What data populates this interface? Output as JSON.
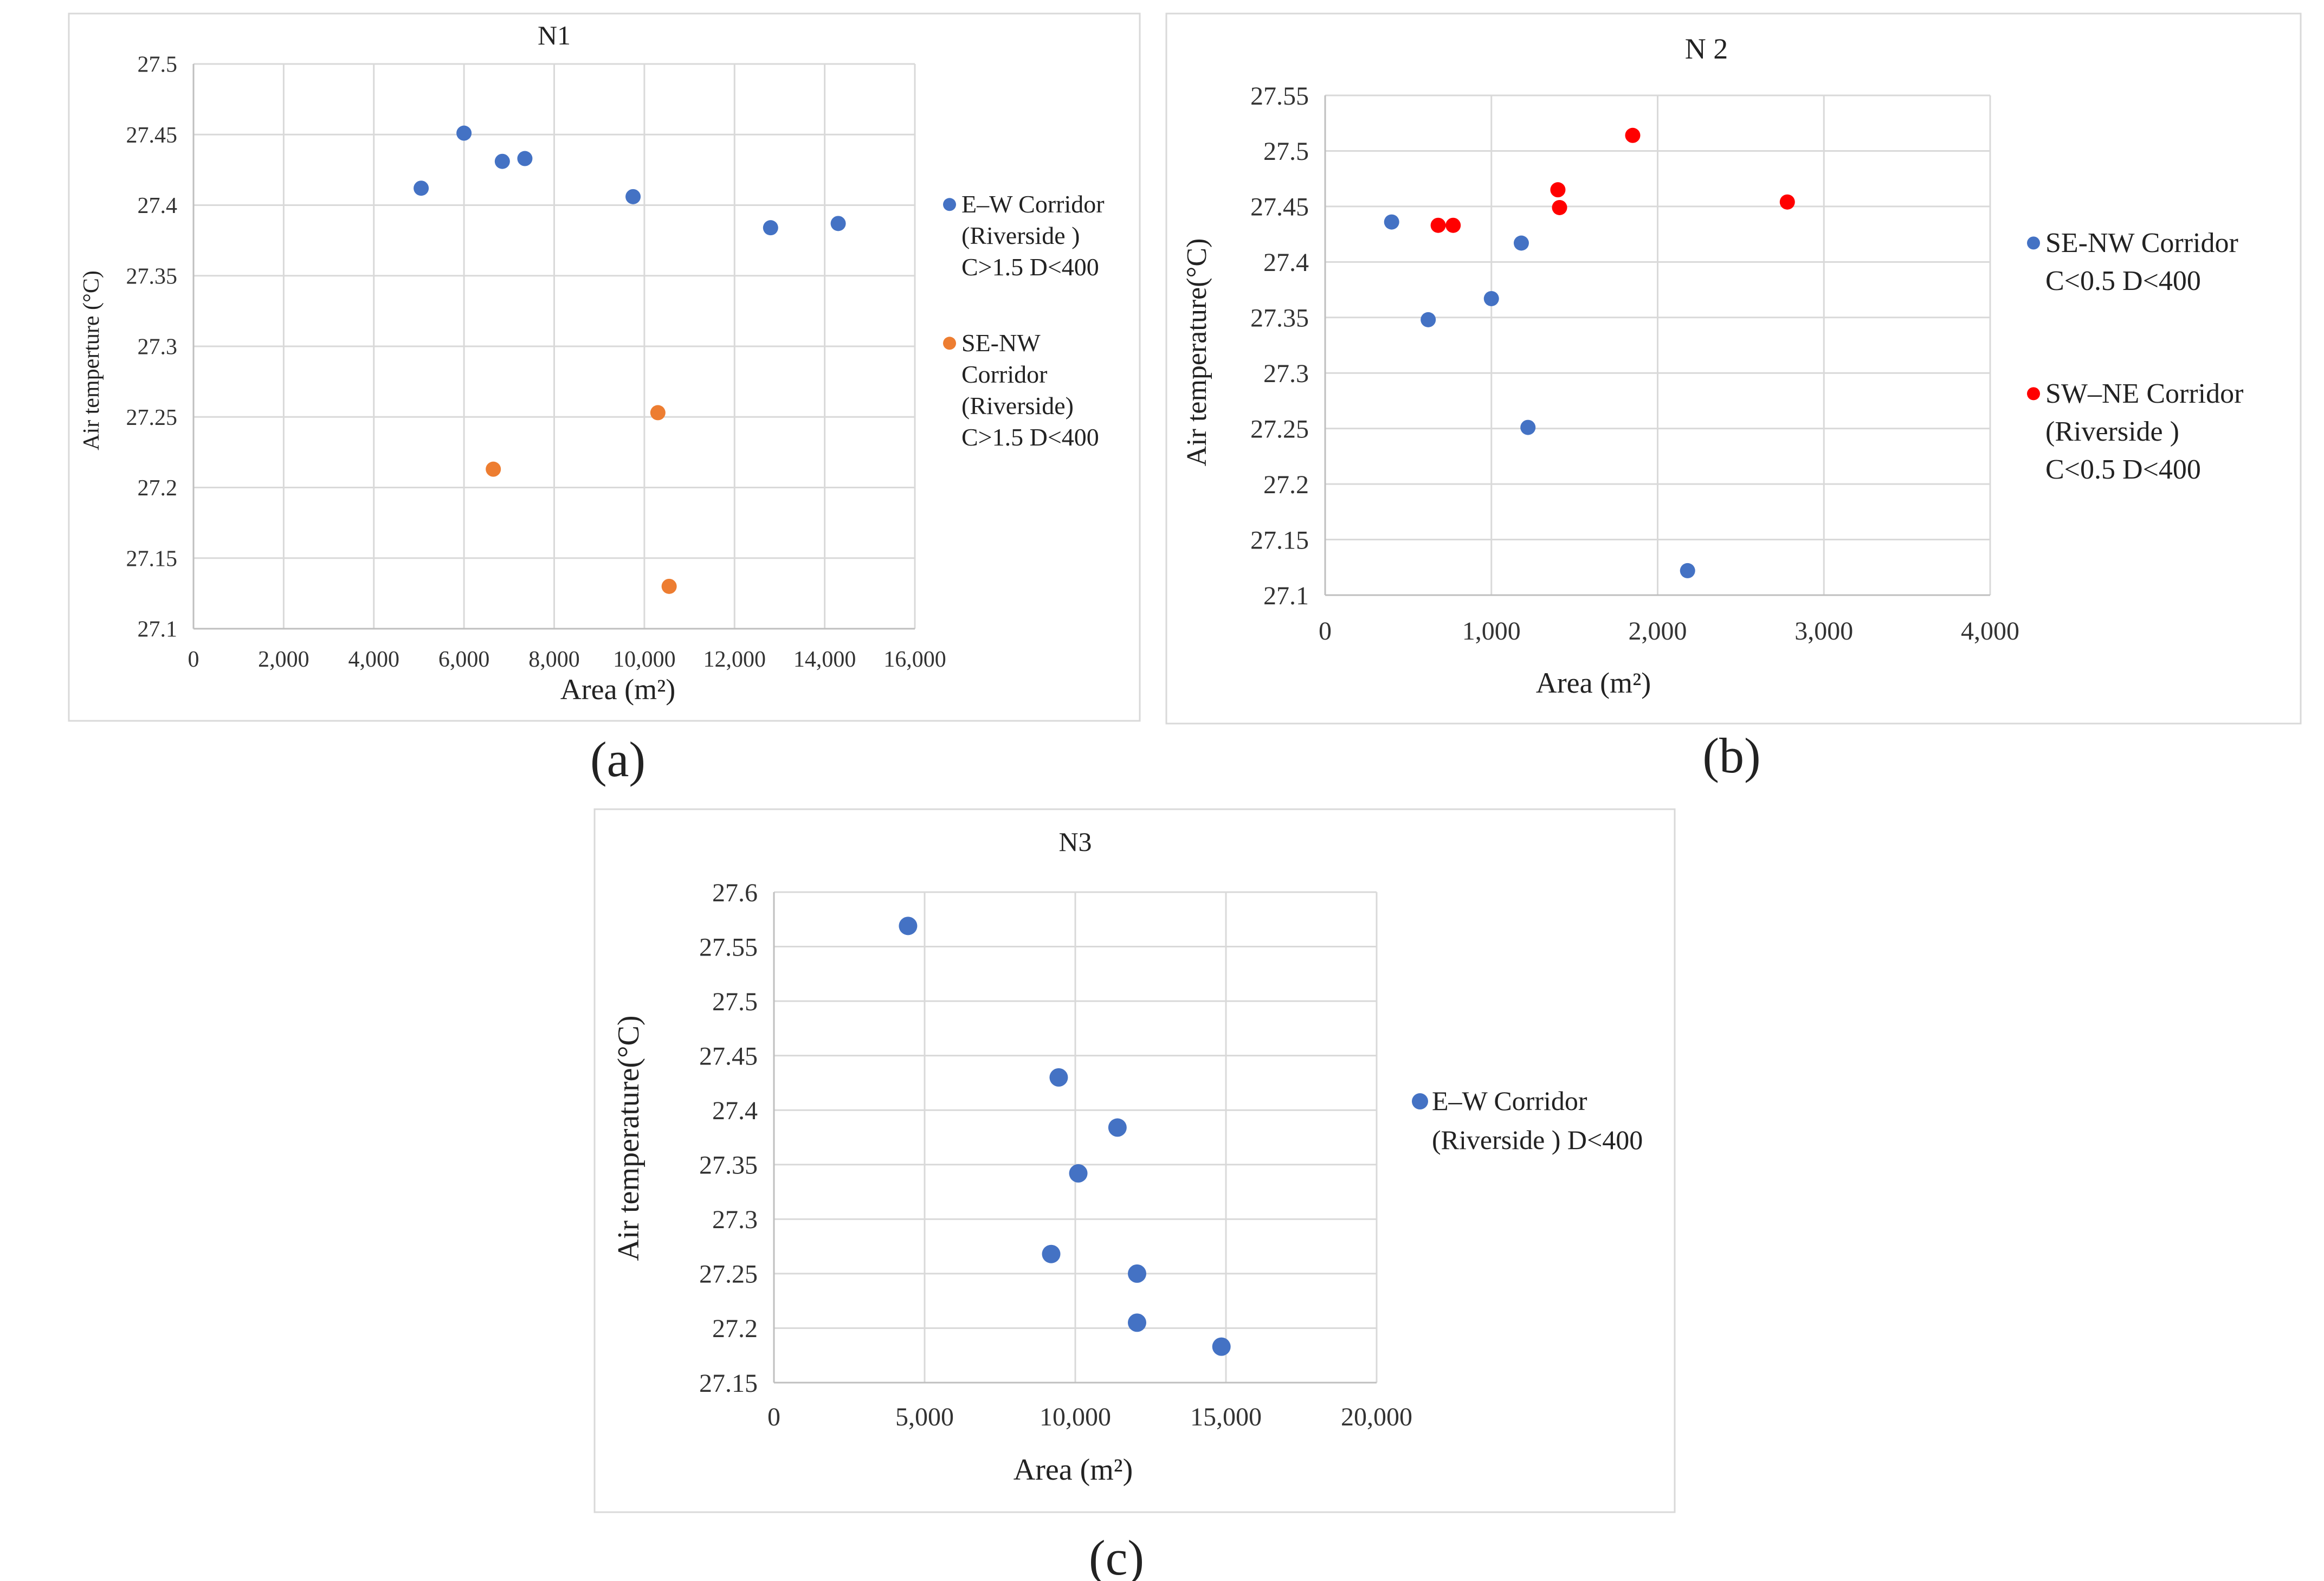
{
  "figure": {
    "panel_letters": [
      "(a)",
      "(b)",
      "(c)"
    ]
  },
  "chart_data": [
    {
      "type": "scatter",
      "id": "N1",
      "title": "N1",
      "xlabel": "Area (m²)",
      "ylabel": "Air temperture (°C)",
      "xlim": [
        0,
        16000
      ],
      "ylim": [
        27.1,
        27.5
      ],
      "xticks": [
        0,
        2000,
        4000,
        6000,
        8000,
        10000,
        12000,
        14000,
        16000
      ],
      "xtick_labels": [
        "0",
        "2,000",
        "4,000",
        "6,000",
        "8,000",
        "10,000",
        "12,000",
        "14,000",
        "16,000"
      ],
      "yticks": [
        27.1,
        27.15,
        27.2,
        27.25,
        27.3,
        27.35,
        27.4,
        27.45,
        27.5
      ],
      "ytick_labels": [
        "27.1",
        "27.15",
        "27.2",
        "27.25",
        "27.3",
        "27.35",
        "27.4",
        "27.45",
        "27.5"
      ],
      "grid": true,
      "legend_position": "right",
      "series": [
        {
          "name": "E–W Corridor (Riverside ) C>1.5 D<400",
          "legend_lines": [
            "E–W Corridor",
            "(Riverside )",
            "C>1.5 D<400"
          ],
          "color": "#4472C4",
          "points": [
            [
              5050,
              27.412
            ],
            [
              6000,
              27.451
            ],
            [
              6850,
              27.431
            ],
            [
              7350,
              27.433
            ],
            [
              9750,
              27.406
            ],
            [
              12800,
              27.384
            ],
            [
              14300,
              27.387
            ]
          ]
        },
        {
          "name": "SE-NW Corridor (Riverside) C>1.5 D<400",
          "legend_lines": [
            "SE-NW",
            "Corridor",
            "(Riverside)",
            "C>1.5 D<400"
          ],
          "color": "#ED7D31",
          "points": [
            [
              6650,
              27.213
            ],
            [
              10300,
              27.253
            ],
            [
              10550,
              27.13
            ]
          ]
        }
      ]
    },
    {
      "type": "scatter",
      "id": "N2",
      "title": "N 2",
      "xlabel": "Area (m²)",
      "ylabel": "Air temperature(°C)",
      "xlim": [
        0,
        4000
      ],
      "ylim": [
        27.1,
        27.55
      ],
      "xticks": [
        0,
        1000,
        2000,
        3000,
        4000
      ],
      "xtick_labels": [
        "0",
        "1,000",
        "2,000",
        "3,000",
        "4,000"
      ],
      "yticks": [
        27.1,
        27.15,
        27.2,
        27.25,
        27.3,
        27.35,
        27.4,
        27.45,
        27.5,
        27.55
      ],
      "ytick_labels": [
        "27.1",
        "27.15",
        "27.2",
        "27.25",
        "27.3",
        "27.35",
        "27.4",
        "27.45",
        "27.5",
        "27.55"
      ],
      "grid": true,
      "legend_position": "right",
      "series": [
        {
          "name": "SE-NW Corridor C<0.5 D<400",
          "legend_lines": [
            "SE-NW  Corridor",
            "C<0.5  D<400"
          ],
          "color": "#4472C4",
          "points": [
            [
              400,
              27.436
            ],
            [
              620,
              27.348
            ],
            [
              1000,
              27.367
            ],
            [
              1180,
              27.417
            ],
            [
              1220,
              27.251
            ],
            [
              2180,
              27.122
            ]
          ]
        },
        {
          "name": "SW–NE Corridor (Riverside ) C<0.5 D<400",
          "legend_lines": [
            "SW–NE  Corridor",
            "(Riverside )",
            "C<0.5 D<400"
          ],
          "color": "#FF0000",
          "points": [
            [
              680,
              27.433
            ],
            [
              770,
              27.433
            ],
            [
              1400,
              27.465
            ],
            [
              1410,
              27.449
            ],
            [
              1850,
              27.514
            ],
            [
              2780,
              27.454
            ]
          ]
        }
      ]
    },
    {
      "type": "scatter",
      "id": "N3",
      "title": "N3",
      "xlabel": "Area (m²)",
      "ylabel": "Air temperature(°C)",
      "xlim": [
        0,
        20000
      ],
      "ylim": [
        27.15,
        27.6
      ],
      "xticks": [
        0,
        5000,
        10000,
        15000,
        20000
      ],
      "xtick_labels": [
        "0",
        "5,000",
        "10,000",
        "15,000",
        "20,000"
      ],
      "yticks": [
        27.15,
        27.2,
        27.25,
        27.3,
        27.35,
        27.4,
        27.45,
        27.5,
        27.55,
        27.6
      ],
      "ytick_labels": [
        "27.15",
        "27.2",
        "27.25",
        "27.3",
        "27.35",
        "27.4",
        "27.45",
        "27.5",
        "27.55",
        "27.6"
      ],
      "grid": true,
      "legend_position": "right",
      "series": [
        {
          "name": "E–W Corridor (Riverside ) D<400",
          "legend_lines": [
            "E–W Corridor",
            "(Riverside ) D<400"
          ],
          "color": "#4472C4",
          "points": [
            [
              4450,
              27.569
            ],
            [
              9450,
              27.43
            ],
            [
              9200,
              27.268
            ],
            [
              10100,
              27.342
            ],
            [
              11400,
              27.384
            ],
            [
              12050,
              27.25
            ],
            [
              12050,
              27.205
            ],
            [
              14850,
              27.183
            ]
          ]
        }
      ]
    }
  ]
}
